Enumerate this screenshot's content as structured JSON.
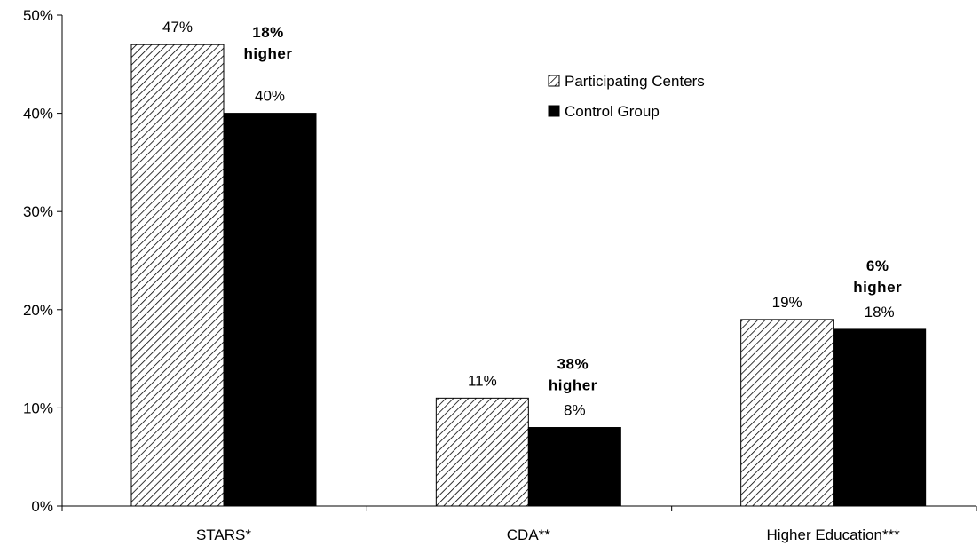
{
  "chart_data": {
    "type": "bar",
    "categories": [
      "STARS*",
      "CDA**",
      "Higher Education***"
    ],
    "series": [
      {
        "name": "Participating Centers",
        "values": [
          47,
          11,
          19
        ],
        "labels": [
          "47%",
          "11%",
          "19%"
        ],
        "pattern": "diagonal-hatch"
      },
      {
        "name": "Control Group",
        "values": [
          40,
          8,
          18
        ],
        "labels": [
          "40%",
          "8%",
          "18%"
        ],
        "color": "#000000"
      }
    ],
    "annotations": [
      {
        "category": "STARS*",
        "lines": [
          "18%",
          "higher"
        ]
      },
      {
        "category": "CDA**",
        "lines": [
          "38%",
          "higher"
        ]
      },
      {
        "category": "Higher Education***",
        "lines": [
          "6%",
          "higher"
        ]
      }
    ],
    "y_ticks": [
      "0%",
      "10%",
      "20%",
      "30%",
      "40%",
      "50%"
    ],
    "ylim": [
      0,
      50
    ],
    "grid": false,
    "legend_position": "top-center"
  }
}
